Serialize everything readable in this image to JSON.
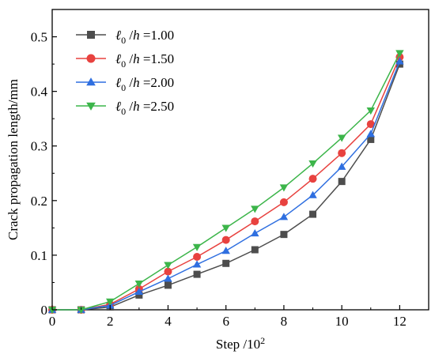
{
  "chart_data": {
    "type": "line",
    "title": "",
    "xlabel": "Step /10",
    "xlabel_superscript": "2",
    "ylabel": "Crack propagation length/mm",
    "xlim": [
      0,
      13
    ],
    "ylim": [
      0,
      0.55
    ],
    "x_ticks": [
      "0",
      "2",
      "4",
      "6",
      "8",
      "10",
      "12"
    ],
    "y_ticks": [
      "0",
      "0.1",
      "0.2",
      "0.3",
      "0.4",
      "0.5"
    ],
    "grid": false,
    "legend_position": "top-left",
    "x": [
      0,
      1,
      2,
      3,
      4,
      5,
      6,
      7,
      8,
      9,
      10,
      11,
      12
    ],
    "series": [
      {
        "name": "ℓ0 /h =1.00",
        "name_ell": "ℓ",
        "name_sub": "0",
        "name_mid": " /",
        "name_h": "h",
        "name_value": " =1.00",
        "color": "#4d4d4d",
        "marker": "square",
        "values": [
          0,
          0,
          0.005,
          0.027,
          0.045,
          0.065,
          0.085,
          0.11,
          0.138,
          0.175,
          0.235,
          0.312,
          0.45
        ]
      },
      {
        "name": "ℓ0 /h =1.50",
        "name_ell": "ℓ",
        "name_sub": "0",
        "name_mid": " /",
        "name_h": "h",
        "name_value": " =1.50",
        "color": "#e8423f",
        "marker": "circle",
        "values": [
          0,
          0,
          0.01,
          0.038,
          0.07,
          0.097,
          0.128,
          0.162,
          0.197,
          0.24,
          0.287,
          0.34,
          0.463
        ]
      },
      {
        "name": "ℓ0 /h =2.00",
        "name_ell": "ℓ",
        "name_sub": "0",
        "name_mid": " /",
        "name_h": "h",
        "name_value": " =2.00",
        "color": "#2f6fe0",
        "marker": "triangle-up",
        "values": [
          0,
          0,
          0.008,
          0.033,
          0.057,
          0.083,
          0.108,
          0.14,
          0.17,
          0.21,
          0.262,
          0.322,
          0.455
        ]
      },
      {
        "name": "ℓ0 /h =2.50",
        "name_ell": "ℓ",
        "name_sub": "0",
        "name_mid": " /",
        "name_h": "h",
        "name_value": " =2.50",
        "color": "#3cb54a",
        "marker": "triangle-down",
        "values": [
          0,
          0,
          0.015,
          0.048,
          0.082,
          0.115,
          0.15,
          0.185,
          0.224,
          0.268,
          0.315,
          0.365,
          0.47
        ]
      }
    ]
  }
}
